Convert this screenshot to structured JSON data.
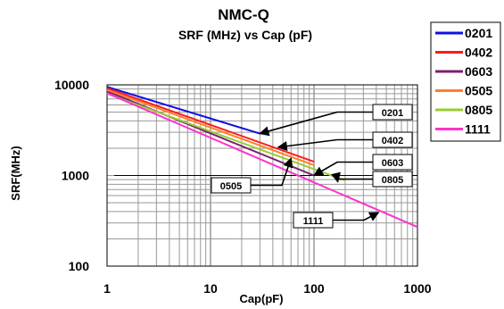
{
  "chart_data": {
    "type": "line",
    "title": "NMC-Q",
    "subtitle": "SRF (MHz) vs Cap (pF)",
    "xlabel": "Cap(pF)",
    "ylabel": "SRF(MHz)",
    "x_scale": "log",
    "y_scale": "log",
    "xlim": [
      1,
      1000
    ],
    "ylim": [
      100,
      10000
    ],
    "x_ticks": [
      "1",
      "10",
      "100",
      "1000"
    ],
    "y_ticks": [
      "100",
      "1000",
      "10000"
    ],
    "grid": true,
    "legend_position": "right",
    "series": [
      {
        "name": "0201",
        "color": "#1010e0",
        "x": [
          1,
          30
        ],
        "y": [
          9500,
          2900
        ]
      },
      {
        "name": "0402",
        "color": "#ff1a1a",
        "x": [
          1,
          100
        ],
        "y": [
          9200,
          1420
        ]
      },
      {
        "name": "0603",
        "color": "#7a1f6e",
        "x": [
          1,
          100
        ],
        "y": [
          8500,
          1000
        ]
      },
      {
        "name": "0505",
        "color": "#ff7f2a",
        "x": [
          1,
          100
        ],
        "y": [
          8800,
          1300
        ]
      },
      {
        "name": "0805",
        "color": "#99cc33",
        "x": [
          1,
          200
        ],
        "y": [
          8000,
          880
        ]
      },
      {
        "name": "1111",
        "color": "#ff33cc",
        "x": [
          1,
          1000
        ],
        "y": [
          8100,
          270
        ]
      }
    ],
    "annotations": [
      {
        "text": "0201",
        "target_x": 30,
        "target_y": 2900
      },
      {
        "text": "0402",
        "target_x": 45,
        "target_y": 2050
      },
      {
        "text": "0603",
        "target_x": 100,
        "target_y": 1000
      },
      {
        "text": "0505",
        "target_x": 60,
        "target_y": 1550
      },
      {
        "text": "0805",
        "target_x": 170,
        "target_y": 850
      },
      {
        "text": "1111",
        "target_x": 420,
        "target_y": 390
      }
    ]
  }
}
